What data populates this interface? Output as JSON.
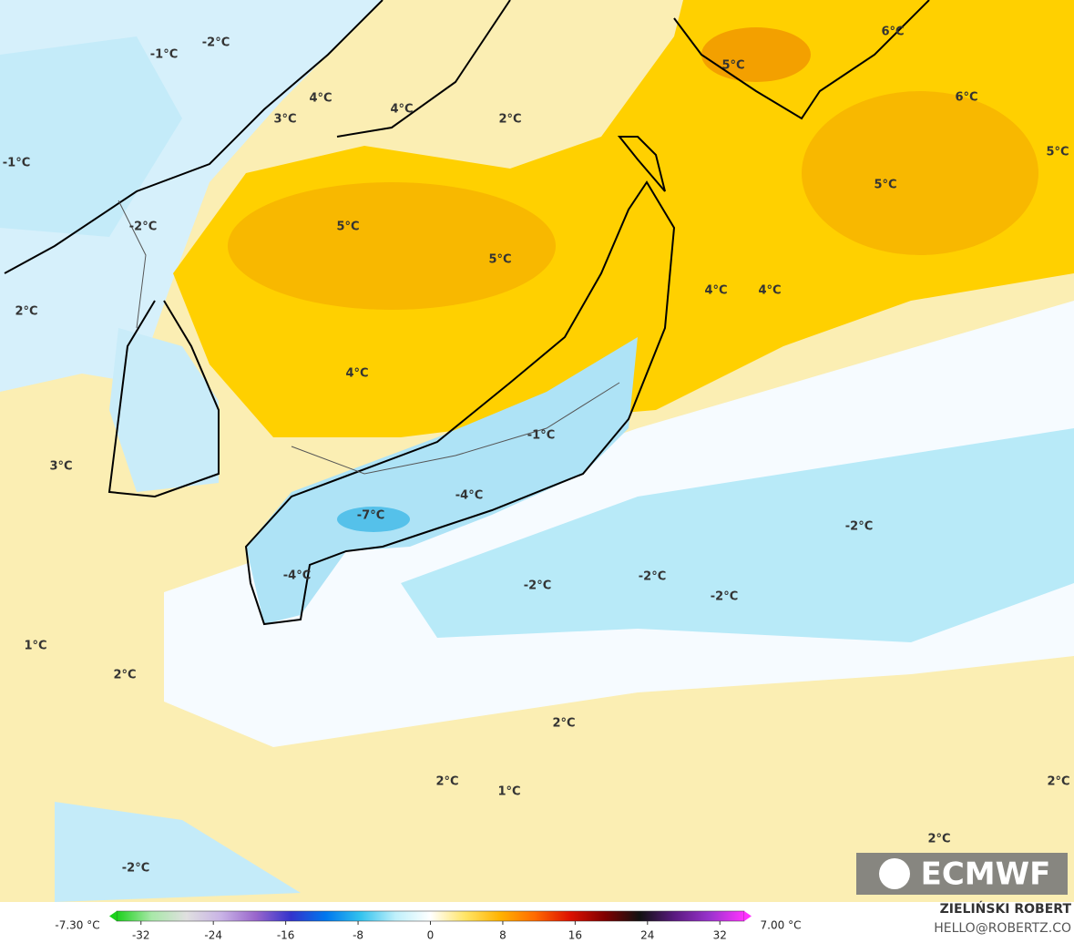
{
  "map_labels": [
    "-1°C",
    "-2°C",
    "4°C",
    "4°C",
    "3°C",
    "2°C",
    "6°C",
    "5°C",
    "6°C",
    "5°C",
    "-1°C",
    "5°C",
    "-2°C",
    "5°C",
    "5°C",
    "2°C",
    "4°C",
    "4°C",
    "4°C",
    "-1°C",
    "3°C",
    "-4°C",
    "-7°C",
    "-2°C",
    "-4°C",
    "-2°C",
    "-2°C",
    "-2°C",
    "1°C",
    "2°C",
    "2°C",
    "2°C",
    "1°C",
    "2°C",
    "2°C",
    "-2°C"
  ],
  "colorbar": {
    "min_label": "-7.30 °C",
    "max_label": "7.00 °C",
    "range": [
      -35.5,
      35.5
    ],
    "ticks": [
      -32,
      -24,
      -16,
      -8,
      0,
      8,
      16,
      24,
      32
    ],
    "colors": [
      "#1bd11b",
      "#a8e8a8",
      "#e0e0e0",
      "#c9b3e6",
      "#9966cc",
      "#3333cc",
      "#0077ee",
      "#33c3ee",
      "#bff0fb",
      "#ffffff",
      "#ffe566",
      "#ffb300",
      "#ff6a00",
      "#dd1100",
      "#800000",
      "#111111",
      "#5a1a80",
      "#9933cc",
      "#ff33ff"
    ]
  },
  "logo": "ECMWF",
  "credit": {
    "name": "ZIELIŃSKI ROBERT",
    "contact": "HELLO@ROBERTZ.CO"
  }
}
